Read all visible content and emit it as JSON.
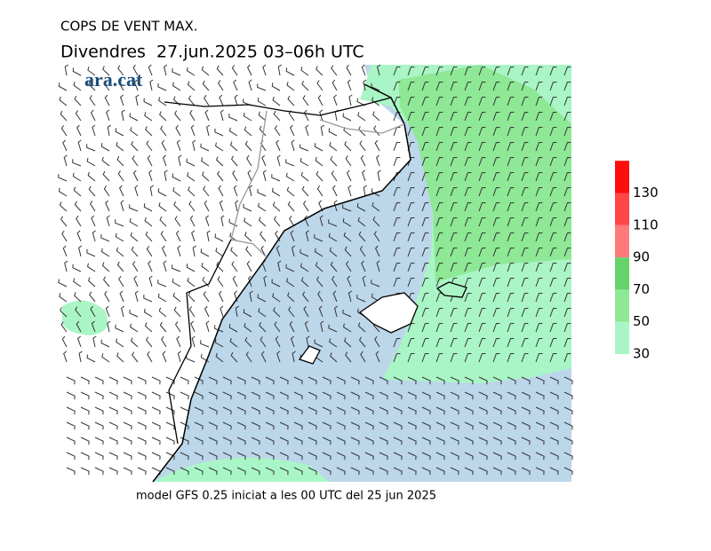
{
  "header": {
    "title": "COPS DE VENT MAX.",
    "subtitle": "Divendres  27.jun.2025 03–06h UTC"
  },
  "logo": "ara.cat",
  "legend": {
    "ticks": [
      30,
      50,
      70,
      90,
      110,
      130
    ],
    "colors": [
      "#aaf5c6",
      "#8ee895",
      "#66d26a",
      "#ff7a7a",
      "#ff4646",
      "#ff0d0d"
    ]
  },
  "footer": "model GFS 0.25 iniciat a les 00 UTC del 25 jun 2025"
}
